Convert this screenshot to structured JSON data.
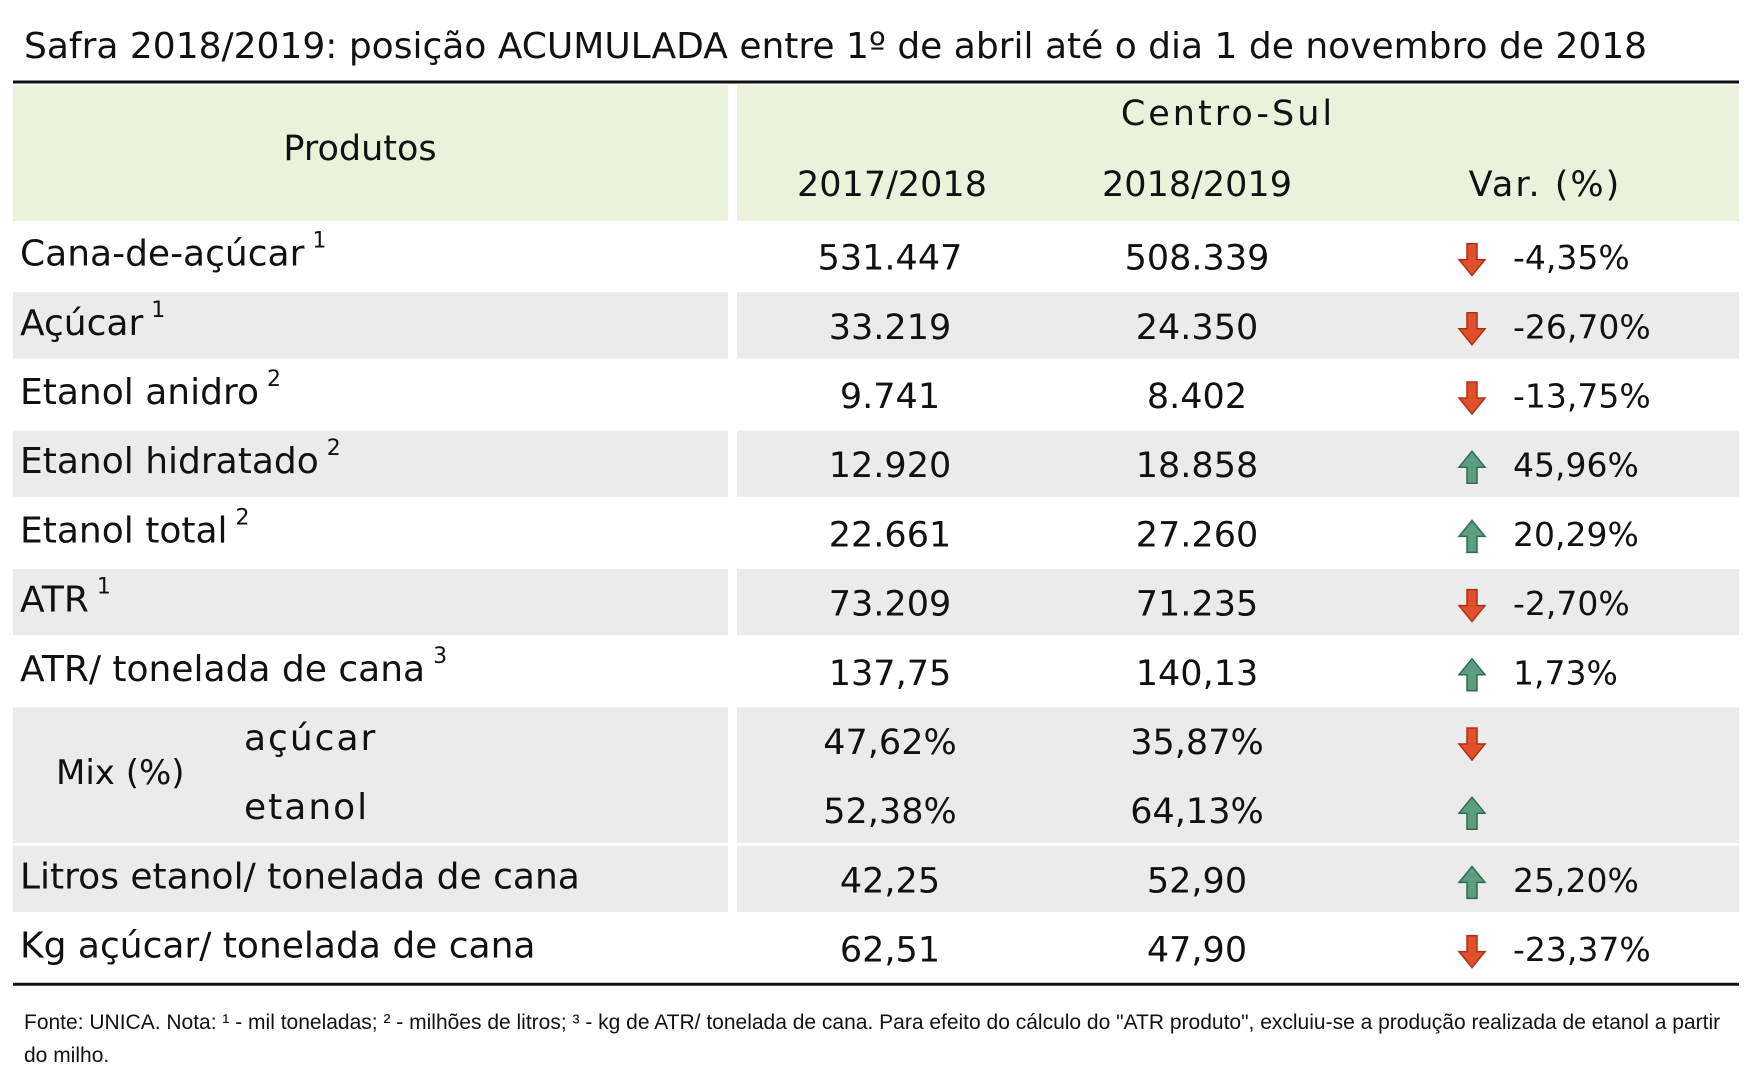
{
  "title": "Safra 2018/2019: posição ACUMULADA entre 1º de abril até o dia 1 de novembro de 2018",
  "header": {
    "products": "Produtos",
    "region": "Centro-Sul",
    "columns": [
      "2017/2018",
      "2018/2019",
      "Var. (%)"
    ]
  },
  "rows": [
    {
      "name": "Cana-de-açúcar",
      "note": "1",
      "values": [
        "531.447",
        "508.339"
      ],
      "var": "-4,35%",
      "trend": "down"
    },
    {
      "name": "Açúcar",
      "note": "1",
      "values": [
        "33.219",
        "24.350"
      ],
      "var": "-26,70%",
      "trend": "down"
    },
    {
      "name": "Etanol anidro",
      "note": "2",
      "values": [
        "9.741",
        "8.402"
      ],
      "var": "-13,75%",
      "trend": "down"
    },
    {
      "name": "Etanol hidratado",
      "note": "2",
      "values": [
        "12.920",
        "18.858"
      ],
      "var": "45,96%",
      "trend": "up"
    },
    {
      "name": "Etanol total",
      "note": "2",
      "values": [
        "22.661",
        "27.260"
      ],
      "var": "20,29%",
      "trend": "up"
    },
    {
      "name": "ATR",
      "note": "1",
      "values": [
        "73.209",
        "71.235"
      ],
      "var": "-2,70%",
      "trend": "down"
    },
    {
      "name": "ATR/ tonelada de cana",
      "note": "3",
      "values": [
        "137,75",
        "140,13"
      ],
      "var": "1,73%",
      "trend": "up"
    }
  ],
  "mix": {
    "label": "Mix (%)",
    "rows": [
      {
        "name": "açúcar",
        "values": [
          "47,62%",
          "35,87%"
        ],
        "trend": "down"
      },
      {
        "name": "etanol",
        "values": [
          "52,38%",
          "64,13%"
        ],
        "trend": "up"
      }
    ]
  },
  "rows_after": [
    {
      "name": "Litros etanol/ tonelada de cana",
      "values": [
        "42,25",
        "52,90"
      ],
      "var": "25,20%",
      "trend": "up"
    },
    {
      "name": "Kg açúcar/ tonelada de cana",
      "values": [
        "62,51",
        "47,90"
      ],
      "var": "-23,37%",
      "trend": "down"
    }
  ],
  "footnote": "Fonte: UNICA. Nota: ¹ - mil toneladas; ² - milhões de litros; ³ - kg de ATR/ tonelada de cana. Para efeito do cálculo do \"ATR produto\", excluiu-se a produção realizada de etanol a partir do milho."
}
